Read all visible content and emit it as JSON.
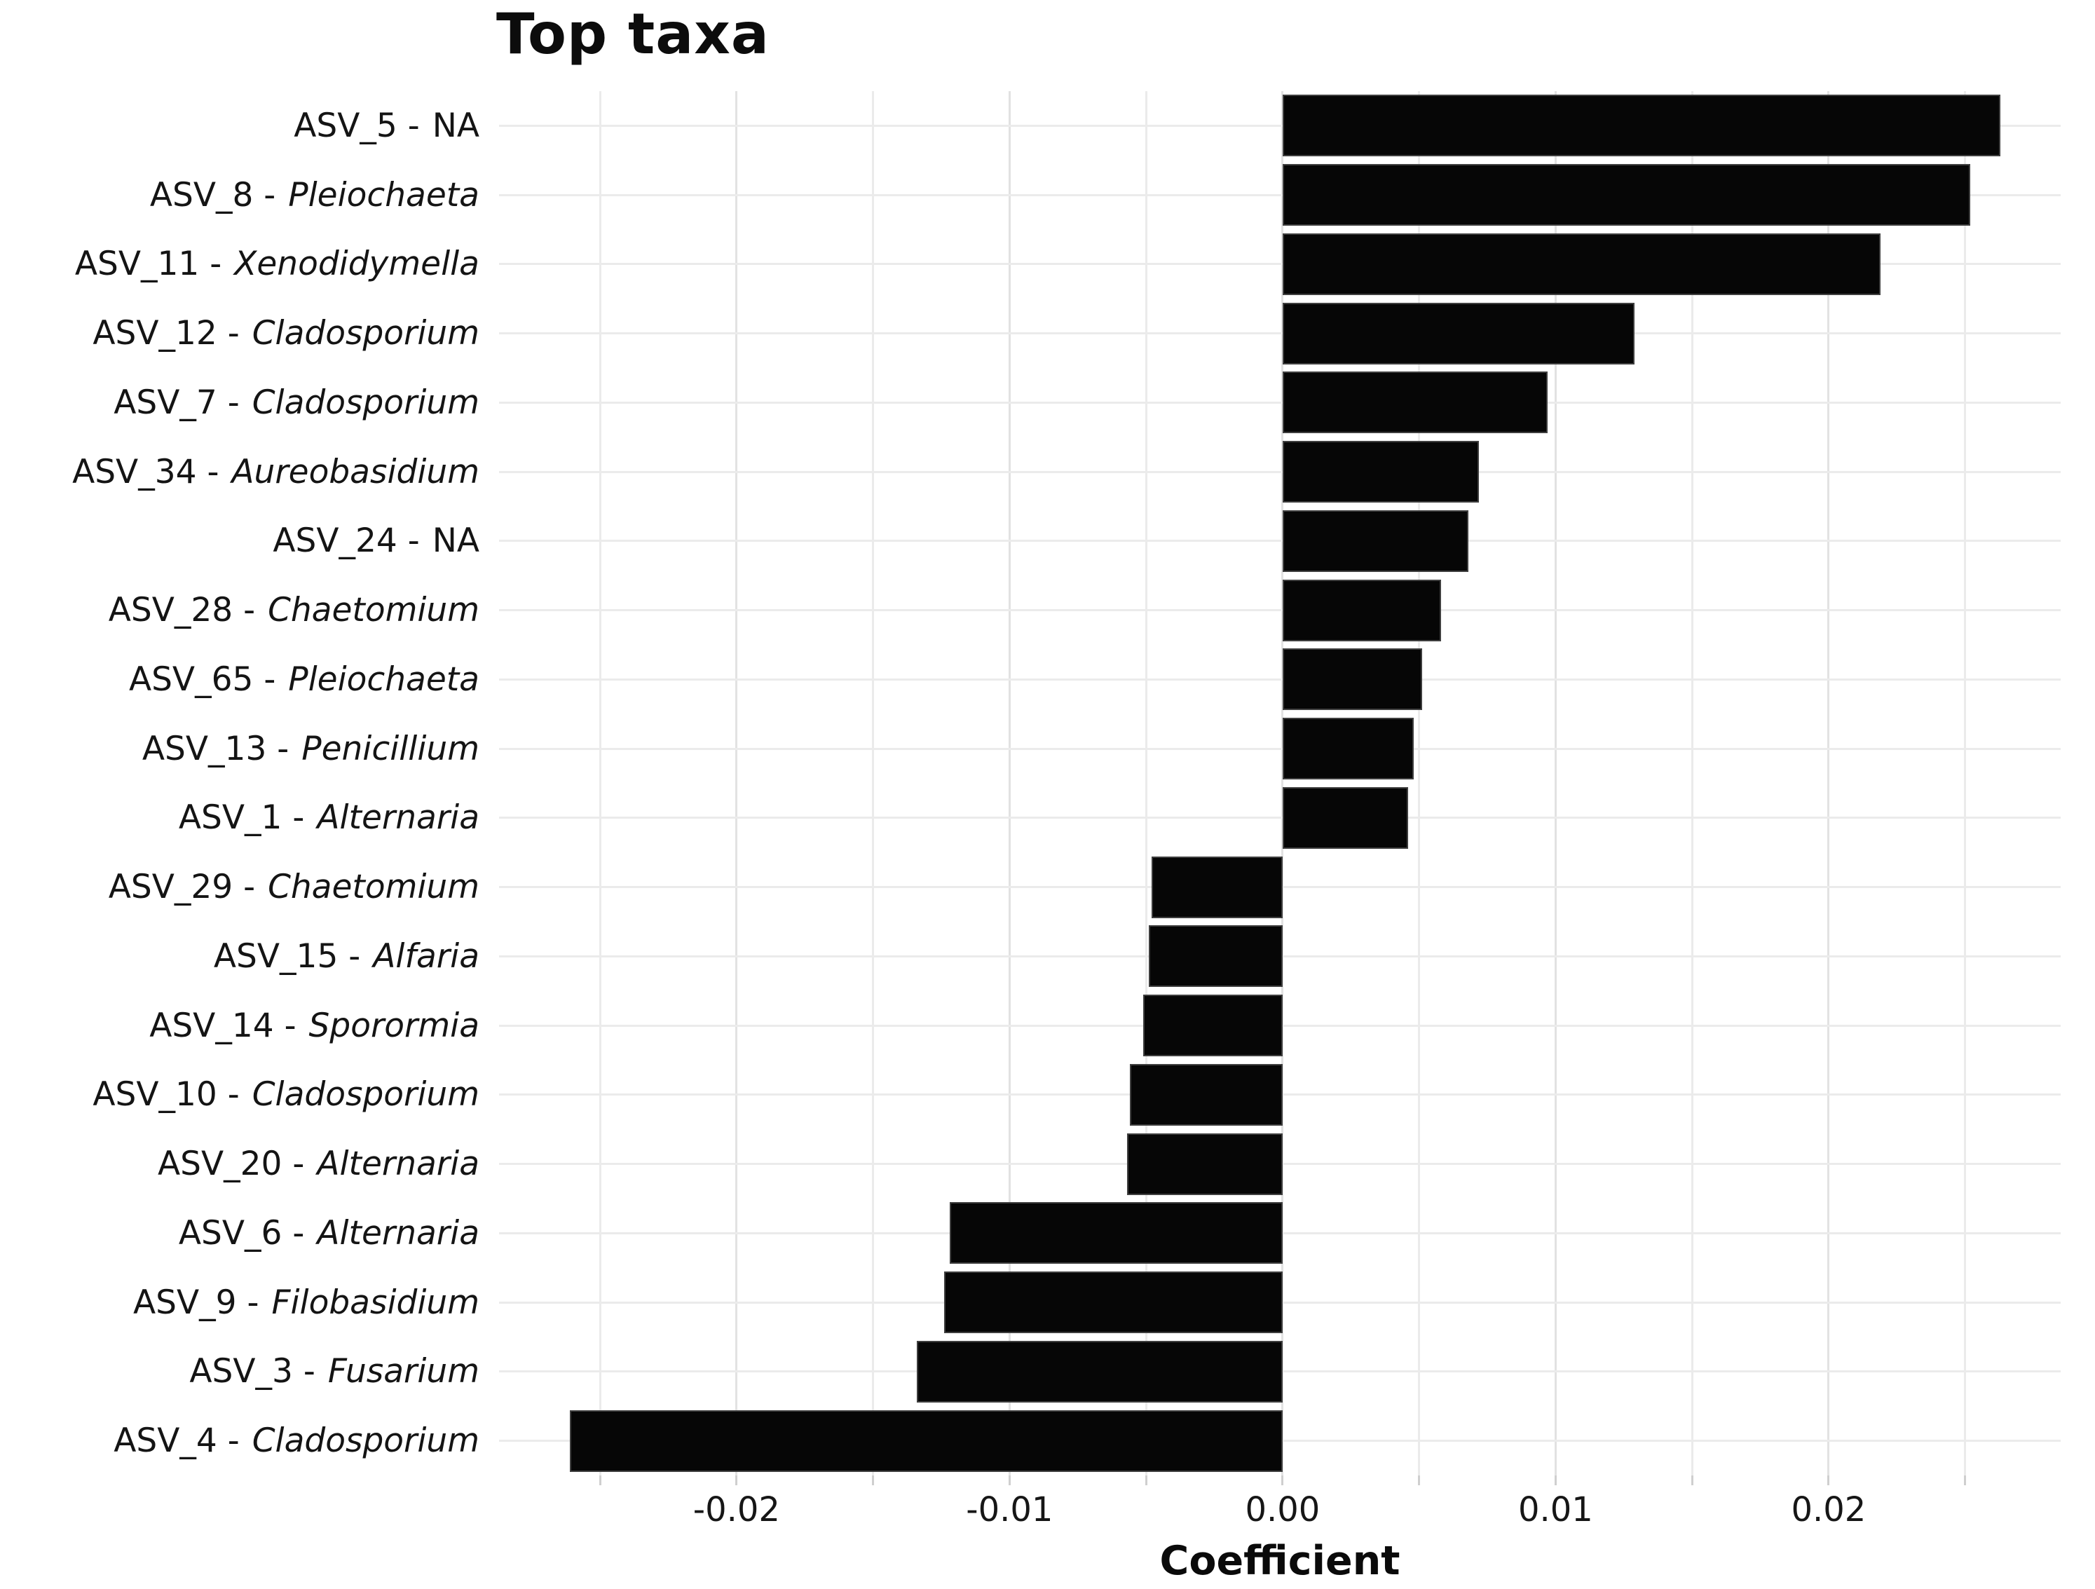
{
  "title": "Top taxa",
  "axis": {
    "x_label": "Coefficient",
    "x_min": -0.0287,
    "x_max": 0.0285,
    "major_ticks": [
      {
        "value": -0.02,
        "label": "-0.02"
      },
      {
        "value": -0.01,
        "label": "-0.01"
      },
      {
        "value": 0.0,
        "label": "0.00"
      },
      {
        "value": 0.01,
        "label": "0.01"
      },
      {
        "value": 0.02,
        "label": "0.02"
      }
    ],
    "minor_tick_values": [
      -0.025,
      -0.015,
      -0.005,
      0.005,
      0.015,
      0.025
    ]
  },
  "chart_data": {
    "type": "bar",
    "orientation": "horizontal",
    "title": "Top taxa",
    "xlabel": "Coefficient",
    "ylabel": "",
    "xlim": [
      -0.0287,
      0.0285
    ],
    "grid": true,
    "legend": false,
    "categories": [
      "ASV_5 - NA",
      "ASV_8 - Pleiochaeta",
      "ASV_11 - Xenodidymella",
      "ASV_12 - Cladosporium",
      "ASV_7 - Cladosporium",
      "ASV_34 - Aureobasidium",
      "ASV_24 - NA",
      "ASV_28 - Chaetomium",
      "ASV_65 - Pleiochaeta",
      "ASV_13 - Penicillium",
      "ASV_1 - Alternaria",
      "ASV_29 - Chaetomium",
      "ASV_15 - Alfaria",
      "ASV_14 - Sporormia",
      "ASV_10 - Cladosporium",
      "ASV_20 - Alternaria",
      "ASV_6 - Alternaria",
      "ASV_9 - Filobasidium",
      "ASV_3 - Fusarium",
      "ASV_4 - Cladosporium"
    ],
    "values": [
      0.0263,
      0.0252,
      0.0219,
      0.0129,
      0.0097,
      0.0072,
      0.0068,
      0.0058,
      0.0051,
      0.0048,
      0.0046,
      -0.0048,
      -0.0049,
      -0.0051,
      -0.0056,
      -0.0057,
      -0.0122,
      -0.0124,
      -0.0134,
      -0.0261
    ],
    "bars": [
      {
        "prefix": "ASV_5 -",
        "genus": "NA",
        "genus_italic": false,
        "value": 0.0263
      },
      {
        "prefix": "ASV_8 -",
        "genus": "Pleiochaeta",
        "genus_italic": true,
        "value": 0.0252
      },
      {
        "prefix": "ASV_11 -",
        "genus": "Xenodidymella",
        "genus_italic": true,
        "value": 0.0219
      },
      {
        "prefix": "ASV_12 -",
        "genus": "Cladosporium",
        "genus_italic": true,
        "value": 0.0129
      },
      {
        "prefix": "ASV_7 -",
        "genus": "Cladosporium",
        "genus_italic": true,
        "value": 0.0097
      },
      {
        "prefix": "ASV_34 -",
        "genus": "Aureobasidium",
        "genus_italic": true,
        "value": 0.0072
      },
      {
        "prefix": "ASV_24 -",
        "genus": "NA",
        "genus_italic": false,
        "value": 0.0068
      },
      {
        "prefix": "ASV_28 -",
        "genus": "Chaetomium",
        "genus_italic": true,
        "value": 0.0058
      },
      {
        "prefix": "ASV_65 -",
        "genus": "Pleiochaeta",
        "genus_italic": true,
        "value": 0.0051
      },
      {
        "prefix": "ASV_13 -",
        "genus": "Penicillium",
        "genus_italic": true,
        "value": 0.0048
      },
      {
        "prefix": "ASV_1 -",
        "genus": "Alternaria",
        "genus_italic": true,
        "value": 0.0046
      },
      {
        "prefix": "ASV_29 -",
        "genus": "Chaetomium",
        "genus_italic": true,
        "value": -0.0048
      },
      {
        "prefix": "ASV_15 -",
        "genus": "Alfaria",
        "genus_italic": true,
        "value": -0.0049
      },
      {
        "prefix": "ASV_14 -",
        "genus": "Sporormia",
        "genus_italic": true,
        "value": -0.0051
      },
      {
        "prefix": "ASV_10 -",
        "genus": "Cladosporium",
        "genus_italic": true,
        "value": -0.0056
      },
      {
        "prefix": "ASV_20 -",
        "genus": "Alternaria",
        "genus_italic": true,
        "value": -0.0057
      },
      {
        "prefix": "ASV_6 -",
        "genus": "Alternaria",
        "genus_italic": true,
        "value": -0.0122
      },
      {
        "prefix": "ASV_9 -",
        "genus": "Filobasidium",
        "genus_italic": true,
        "value": -0.0124
      },
      {
        "prefix": "ASV_3 -",
        "genus": "Fusarium",
        "genus_italic": true,
        "value": -0.0134
      },
      {
        "prefix": "ASV_4 -",
        "genus": "Cladosporium",
        "genus_italic": true,
        "value": -0.0261
      }
    ]
  },
  "colors": {
    "bar_fill": "#060606",
    "bar_edge": "#3f3f3f",
    "grid_major": "#e2e2e2",
    "grid_minor": "#ebebeb",
    "tick_mark": "#cfcfcf",
    "text": "#141414",
    "background": "#ffffff"
  }
}
